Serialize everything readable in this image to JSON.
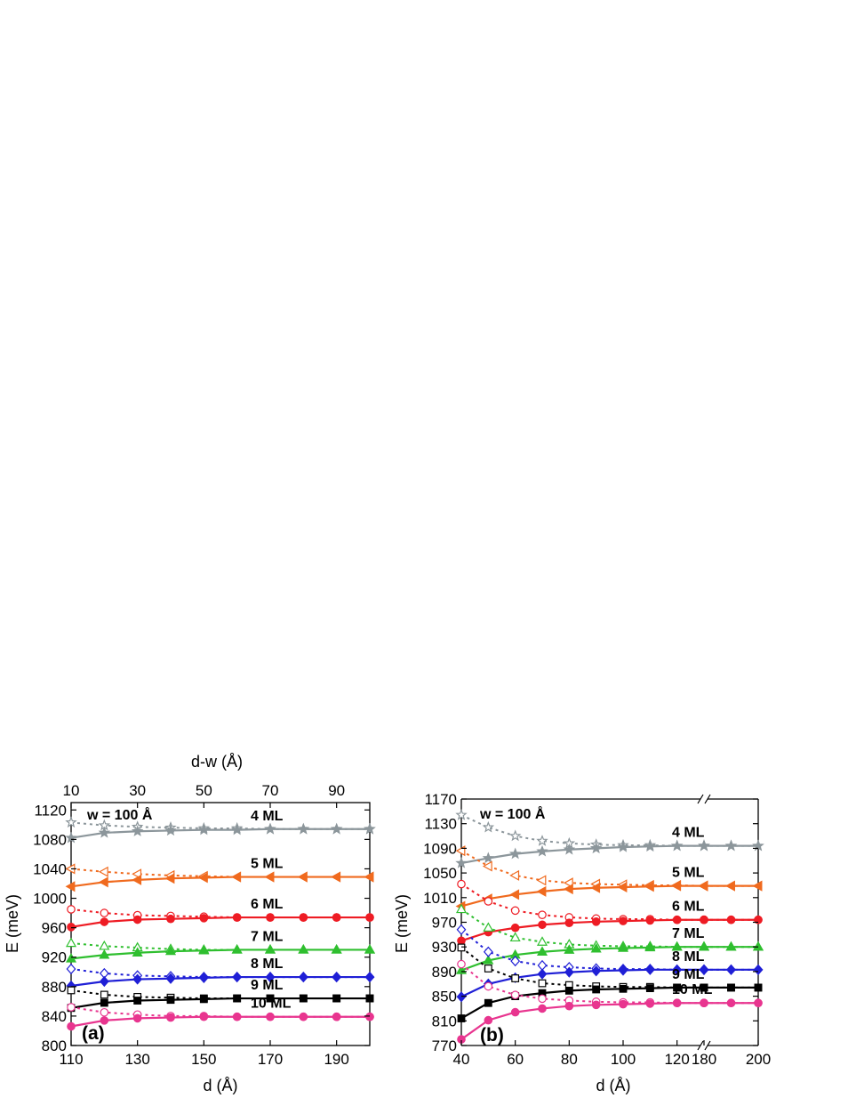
{
  "chart_data": [
    {
      "type": "line",
      "panel_label": "(a)",
      "annotation": "w = 100 Å",
      "xlabel": "d (Å)",
      "x2label": "d-w (Å)",
      "ylabel": "E (meV)",
      "xlim": [
        110,
        200
      ],
      "ylim": [
        800,
        1130
      ],
      "x_ticks": [
        "110",
        "130",
        "150",
        "170",
        "190"
      ],
      "x2_ticks": [
        "10",
        "30",
        "50",
        "70",
        "90"
      ],
      "y_ticks": [
        "800",
        "840",
        "880",
        "920",
        "960",
        "1000",
        "1040",
        "1080",
        "1120"
      ],
      "x": [
        110,
        120,
        130,
        140,
        150,
        160,
        170,
        180,
        190,
        200
      ],
      "series": [
        {
          "name": "4 ML",
          "color": "#8c969b",
          "solid": [
            1082,
            1089,
            1091,
            1092,
            1093,
            1093,
            1094,
            1094,
            1094,
            1094
          ],
          "dotted": [
            1103,
            1099,
            1097,
            1096,
            1095,
            1095,
            1094,
            1094,
            1094,
            1094
          ]
        },
        {
          "name": "5 ML",
          "color": "#f06a1e",
          "solid": [
            1016,
            1022,
            1025,
            1027,
            1028,
            1029,
            1029,
            1029,
            1029,
            1029
          ],
          "dotted": [
            1040,
            1036,
            1033,
            1031,
            1030,
            1029,
            1029,
            1029,
            1029,
            1029
          ]
        },
        {
          "name": "6 ML",
          "color": "#ee1c24",
          "solid": [
            961,
            968,
            971,
            972,
            973,
            974,
            974,
            974,
            974,
            974
          ],
          "dotted": [
            985,
            980,
            977,
            976,
            975,
            974,
            974,
            974,
            974,
            974
          ]
        },
        {
          "name": "7 ML",
          "color": "#2fbf2f",
          "solid": [
            918,
            923,
            926,
            928,
            929,
            930,
            930,
            930,
            930,
            930
          ],
          "dotted": [
            939,
            935,
            933,
            931,
            930,
            930,
            930,
            930,
            930,
            930
          ]
        },
        {
          "name": "8 ML",
          "color": "#1f1fd6",
          "solid": [
            881,
            887,
            890,
            891,
            892,
            893,
            893,
            893,
            893,
            893
          ],
          "dotted": [
            904,
            898,
            895,
            894,
            893,
            893,
            893,
            893,
            893,
            893
          ]
        },
        {
          "name": "9 ML",
          "color": "#000000",
          "solid": [
            851,
            858,
            861,
            862,
            863,
            864,
            864,
            864,
            864,
            864
          ],
          "dotted": [
            875,
            869,
            866,
            865,
            864,
            864,
            864,
            864,
            864,
            864
          ]
        },
        {
          "name": "10 ML",
          "color": "#e8358f",
          "solid": [
            826,
            834,
            837,
            838,
            839,
            839,
            839,
            839,
            839,
            839
          ],
          "dotted": [
            852,
            845,
            842,
            840,
            840,
            839,
            839,
            839,
            839,
            839
          ]
        }
      ]
    },
    {
      "type": "line",
      "panel_label": "(b)",
      "annotation": "w = 100 Å",
      "xlabel": "d (Å)",
      "ylabel": "E (meV)",
      "xlim": [
        40,
        200
      ],
      "x_break": [
        130,
        180
      ],
      "ylim": [
        770,
        1170
      ],
      "x_ticks": [
        "40",
        "60",
        "80",
        "100",
        "120",
        "180",
        "200"
      ],
      "y_ticks": [
        "770",
        "810",
        "850",
        "890",
        "930",
        "970",
        "1010",
        "1050",
        "1090",
        "1130",
        "1170"
      ],
      "x": [
        40,
        50,
        60,
        70,
        80,
        90,
        100,
        110,
        120,
        130,
        180,
        190,
        200
      ],
      "series": [
        {
          "name": "4 ML",
          "color": "#8c969b",
          "solid": [
            1066,
            1074,
            1081,
            1085,
            1088,
            1090,
            1092,
            1093,
            1094,
            1094,
            1094,
            1094,
            1094
          ],
          "dotted": [
            1144,
            1124,
            1110,
            1102,
            1098,
            1096,
            1095,
            1095,
            1094,
            1094,
            1094,
            1094,
            1094
          ]
        },
        {
          "name": "5 ML",
          "color": "#f06a1e",
          "solid": [
            996,
            1008,
            1015,
            1020,
            1024,
            1026,
            1027,
            1028,
            1029,
            1029,
            1029,
            1029,
            1029
          ],
          "dotted": [
            1086,
            1061,
            1046,
            1038,
            1034,
            1032,
            1031,
            1030,
            1030,
            1029,
            1029,
            1029,
            1029
          ]
        },
        {
          "name": "6 ML",
          "color": "#ee1c24",
          "solid": [
            940,
            954,
            961,
            966,
            969,
            971,
            972,
            973,
            974,
            974,
            974,
            974,
            974
          ],
          "dotted": [
            1032,
            1004,
            989,
            982,
            978,
            976,
            975,
            975,
            974,
            974,
            974,
            974,
            974
          ]
        },
        {
          "name": "7 ML",
          "color": "#2fbf2f",
          "solid": [
            892,
            908,
            917,
            922,
            925,
            927,
            928,
            929,
            930,
            930,
            930,
            930,
            930
          ],
          "dotted": [
            991,
            961,
            945,
            938,
            934,
            932,
            931,
            931,
            930,
            930,
            930,
            930,
            930
          ]
        },
        {
          "name": "8 ML",
          "color": "#1f1fd6",
          "solid": [
            849,
            870,
            880,
            886,
            889,
            891,
            892,
            893,
            893,
            893,
            893,
            893,
            893
          ],
          "dotted": [
            958,
            922,
            907,
            900,
            897,
            895,
            894,
            894,
            893,
            893,
            893,
            893,
            893
          ]
        },
        {
          "name": "9 ML",
          "color": "#000000",
          "solid": [
            814,
            839,
            850,
            855,
            859,
            861,
            862,
            863,
            864,
            864,
            864,
            864,
            864
          ],
          "dotted": [
            929,
            895,
            879,
            871,
            868,
            866,
            865,
            865,
            864,
            864,
            864,
            864,
            864
          ]
        },
        {
          "name": "10 ML",
          "color": "#e8358f",
          "solid": [
            780,
            811,
            824,
            830,
            834,
            836,
            837,
            838,
            839,
            839,
            839,
            839,
            839
          ],
          "dotted": [
            902,
            866,
            852,
            846,
            843,
            841,
            840,
            840,
            839,
            839,
            839,
            839,
            839
          ]
        }
      ]
    }
  ]
}
